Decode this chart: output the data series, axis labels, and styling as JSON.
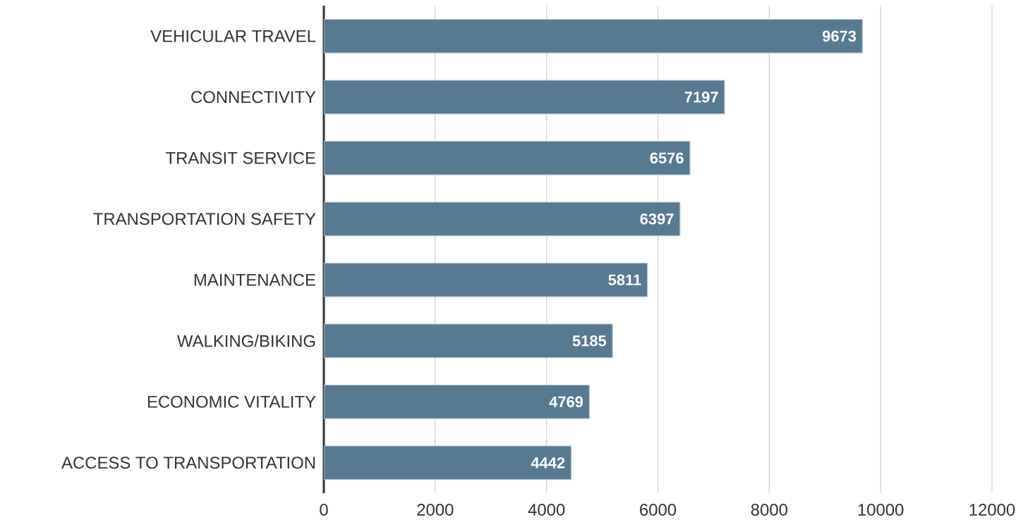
{
  "chart_data": {
    "type": "bar",
    "orientation": "horizontal",
    "categories": [
      "VEHICULAR TRAVEL",
      "CONNECTIVITY",
      "TRANSIT SERVICE",
      "TRANSPORTATION SAFETY",
      "MAINTENANCE",
      "WALKING/BIKING",
      "ECONOMIC VITALITY",
      "ACCESS TO TRANSPORTATION"
    ],
    "values": [
      9673,
      7197,
      6576,
      6397,
      5811,
      5185,
      4769,
      4442
    ],
    "color": "#587a91",
    "xlim": [
      0,
      12000
    ],
    "xticks": [
      0,
      2000,
      4000,
      6000,
      8000,
      10000,
      12000
    ],
    "grid": "x",
    "data_labels": true
  }
}
